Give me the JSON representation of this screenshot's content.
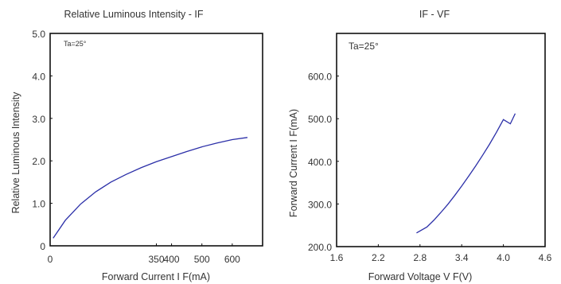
{
  "chart_data": [
    {
      "type": "line",
      "title": "Relative Luminous Intensity - IF",
      "annotation": "Ta=25°",
      "xlabel": "Forward Current I F(mA)",
      "ylabel": "Relative Luminous Intensity",
      "xlim": [
        0,
        700
      ],
      "ylim": [
        0,
        5
      ],
      "x_ticks": [
        {
          "value": 0,
          "label": "0"
        },
        {
          "value": 350,
          "label": "350"
        },
        {
          "value": 400,
          "label": "400"
        },
        {
          "value": 500,
          "label": "500"
        },
        {
          "value": 600,
          "label": "600"
        }
      ],
      "y_ticks": [
        {
          "value": 0,
          "label": "0"
        },
        {
          "value": 1,
          "label": "1.0"
        },
        {
          "value": 2,
          "label": "2.0"
        },
        {
          "value": 3,
          "label": "3.0"
        },
        {
          "value": 4,
          "label": "4.0"
        },
        {
          "value": 5,
          "label": "5.0"
        }
      ],
      "grid": false,
      "series": [
        {
          "x": [
            10,
            50,
            100,
            150,
            200,
            250,
            300,
            350,
            400,
            450,
            500,
            550,
            600,
            650
          ],
          "y": [
            0.18,
            0.6,
            0.98,
            1.27,
            1.5,
            1.68,
            1.84,
            1.98,
            2.1,
            2.22,
            2.33,
            2.42,
            2.5,
            2.55
          ]
        }
      ]
    },
    {
      "type": "line",
      "title": "IF - VF",
      "annotation": "Ta=25°",
      "xlabel": "Forward Voltage V F(V)",
      "ylabel": "Forward Current I F(mA)",
      "xlim": [
        1.6,
        4.6
      ],
      "ylim": [
        200,
        700
      ],
      "x_ticks": [
        {
          "value": 1.6,
          "label": "1.6"
        },
        {
          "value": 2.2,
          "label": "2.2"
        },
        {
          "value": 2.8,
          "label": "2.8"
        },
        {
          "value": 3.4,
          "label": "3.4"
        },
        {
          "value": 4.0,
          "label": "4.0"
        },
        {
          "value": 4.6,
          "label": "4.6"
        }
      ],
      "y_ticks": [
        {
          "value": 200,
          "label": "200.0"
        },
        {
          "value": 300,
          "label": "300.0"
        },
        {
          "value": 400,
          "label": "400.0"
        },
        {
          "value": 500,
          "label": "500.0"
        },
        {
          "value": 600,
          "label": "600.0"
        }
      ],
      "grid": false,
      "series": [
        {
          "x": [
            2.75,
            2.9,
            3.0,
            3.1,
            3.2,
            3.3,
            3.4,
            3.5,
            3.6,
            3.7,
            3.8,
            3.9,
            4.0,
            4.1,
            4.17
          ],
          "y": [
            232,
            246,
            262,
            280,
            299,
            320,
            342,
            365,
            389,
            414,
            440,
            468,
            498,
            488,
            512
          ]
        }
      ]
    }
  ]
}
